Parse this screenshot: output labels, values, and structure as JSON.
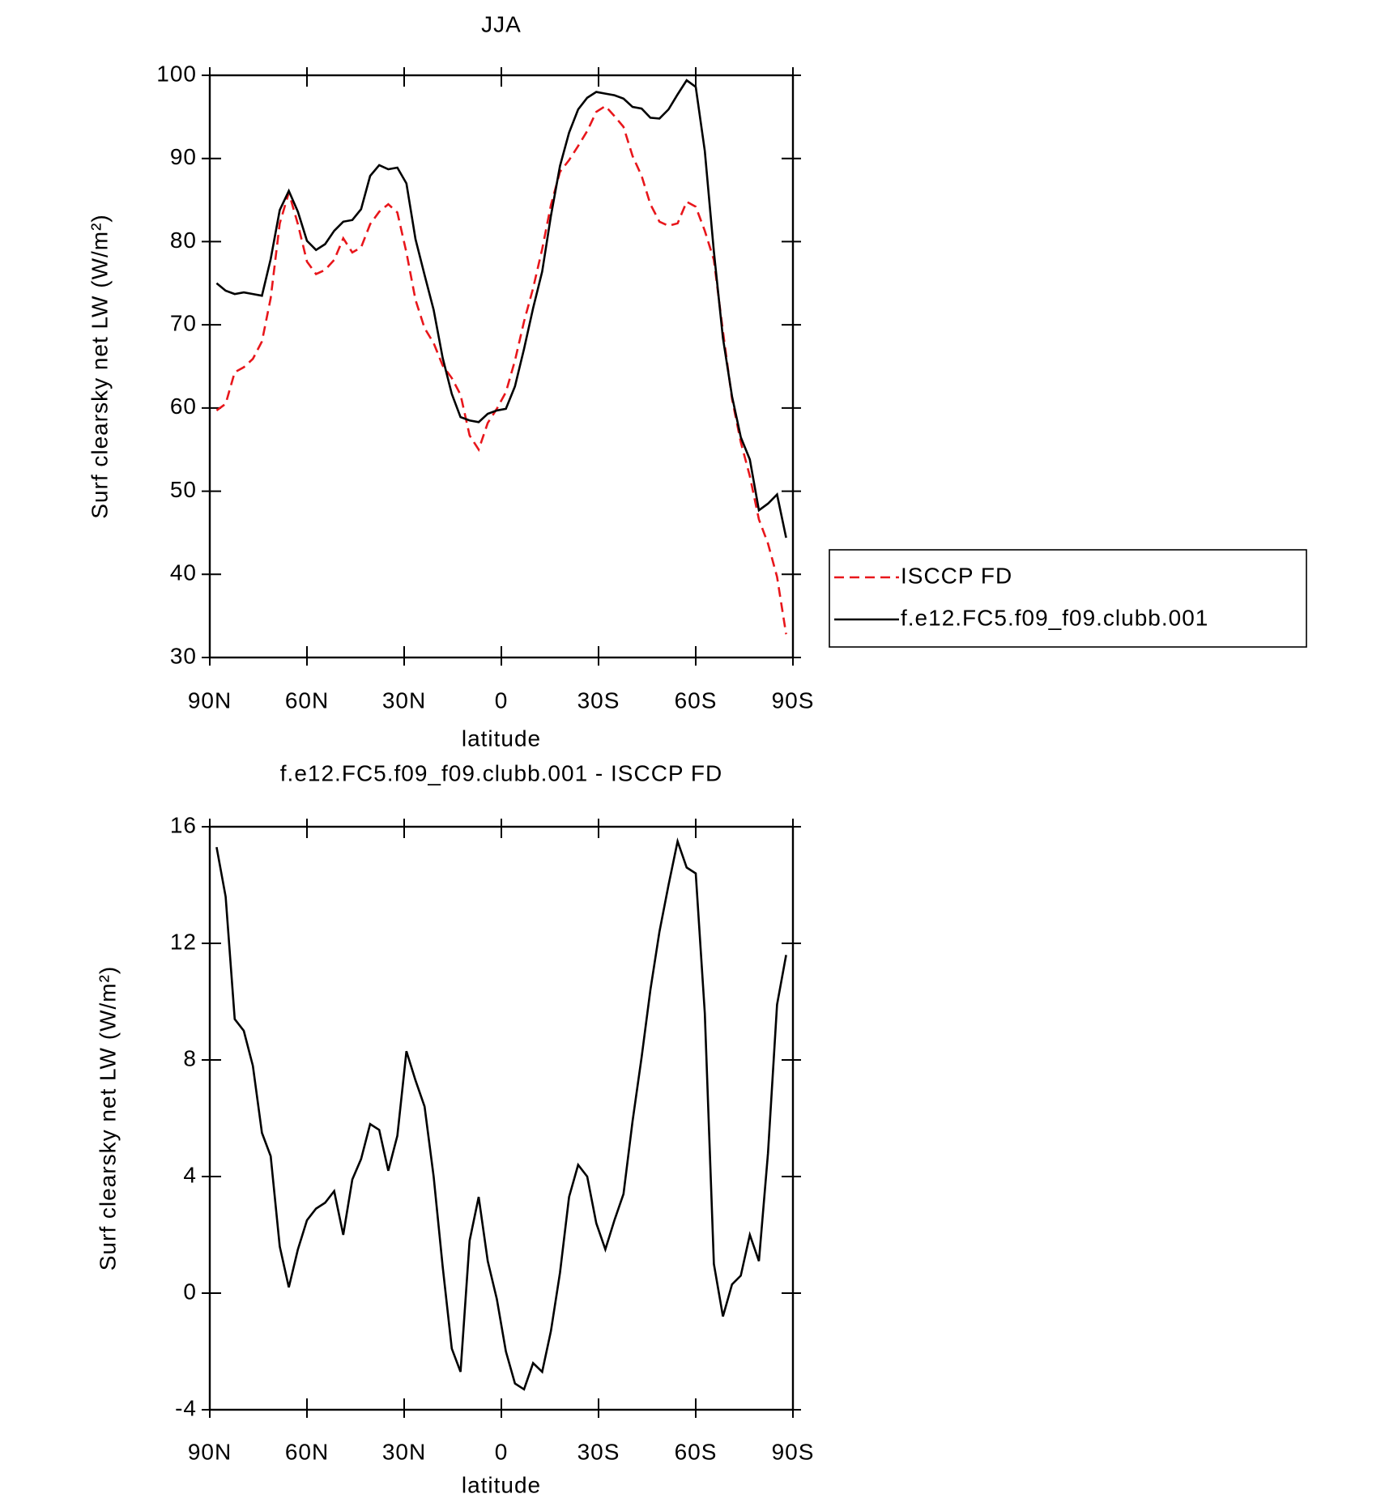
{
  "chart_data": [
    {
      "type": "line",
      "title": "JJA",
      "xlabel": "latitude",
      "ylabel": "Surf clearsky net LW (W/m²)",
      "x": [
        87.9,
        85.1,
        82.3,
        79.5,
        76.7,
        73.9,
        71.2,
        68.4,
        65.6,
        62.8,
        60.0,
        57.2,
        54.4,
        51.6,
        48.8,
        46.0,
        43.3,
        40.5,
        37.7,
        34.9,
        32.1,
        29.3,
        26.5,
        23.7,
        20.9,
        18.1,
        15.3,
        12.6,
        9.8,
        7.0,
        4.2,
        1.4,
        -1.4,
        -4.2,
        -7.0,
        -9.8,
        -12.6,
        -15.3,
        -18.1,
        -20.9,
        -23.7,
        -26.5,
        -29.3,
        -32.1,
        -34.9,
        -37.7,
        -40.5,
        -43.3,
        -46.0,
        -48.8,
        -51.6,
        -54.4,
        -57.2,
        -60.0,
        -62.8,
        -65.6,
        -68.4,
        -71.2,
        -73.9,
        -76.7,
        -79.5,
        -82.3,
        -85.1,
        -87.9
      ],
      "series": [
        {
          "name": "ISCCP FD",
          "color": "#e8161b",
          "style": "dashed",
          "values": [
            59.7,
            60.5,
            64.3,
            64.9,
            65.9,
            68.0,
            73.2,
            82.2,
            85.9,
            82.1,
            77.6,
            76.1,
            76.6,
            77.8,
            80.4,
            78.7,
            79.3,
            82.1,
            83.6,
            84.5,
            83.5,
            78.7,
            73.0,
            69.6,
            67.8,
            65.1,
            63.6,
            61.6,
            56.7,
            55.0,
            58.2,
            59.9,
            61.9,
            65.7,
            70.4,
            74.4,
            79.1,
            84.4,
            88.4,
            89.8,
            91.5,
            93.3,
            95.6,
            96.3,
            95.1,
            93.8,
            90.3,
            87.9,
            84.5,
            82.4,
            81.9,
            82.2,
            84.8,
            84.2,
            81.3,
            77.8,
            69.2,
            61.1,
            55.9,
            51.8,
            46.6,
            43.7,
            39.7,
            32.8
          ]
        },
        {
          "name": "f.e12.FC5.f09_f09.clubb.001",
          "color": "#000000",
          "style": "solid",
          "values": [
            75.0,
            74.1,
            73.7,
            73.9,
            73.7,
            73.5,
            77.9,
            83.8,
            86.1,
            83.6,
            80.1,
            79.0,
            79.7,
            81.3,
            82.4,
            82.6,
            83.9,
            87.9,
            89.2,
            88.7,
            88.9,
            87.0,
            80.3,
            76.0,
            71.8,
            66.0,
            61.7,
            58.9,
            58.5,
            58.3,
            59.3,
            59.7,
            59.9,
            62.6,
            67.1,
            72.0,
            76.4,
            83.1,
            89.1,
            93.1,
            95.9,
            97.3,
            98.0,
            97.8,
            97.6,
            97.2,
            96.2,
            96.0,
            94.9,
            94.8,
            95.9,
            97.7,
            99.4,
            98.6,
            90.9,
            78.8,
            68.4,
            61.4,
            56.5,
            53.8,
            47.7,
            48.5,
            49.6,
            44.4
          ]
        }
      ],
      "xlim": [
        90,
        -90
      ],
      "xticks": [
        {
          "value": 90,
          "label": "90N"
        },
        {
          "value": 60,
          "label": "60N"
        },
        {
          "value": 30,
          "label": "30N"
        },
        0,
        {
          "value": -30,
          "label": "30S"
        },
        {
          "value": -60,
          "label": "60S"
        },
        {
          "value": -90,
          "label": "90S"
        }
      ],
      "ylim": [
        30,
        100
      ],
      "yticks": [
        30,
        40,
        50,
        60,
        70,
        80,
        90,
        100
      ],
      "legend": "right"
    },
    {
      "type": "line",
      "title": "f.e12.FC5.f09_f09.clubb.001 - ISCCP FD",
      "xlabel": "latitude",
      "ylabel": "Surf clearsky net LW (W/m²)",
      "x": [
        87.9,
        85.1,
        82.3,
        79.5,
        76.7,
        73.9,
        71.2,
        68.4,
        65.6,
        62.8,
        60.0,
        57.2,
        54.4,
        51.6,
        48.8,
        46.0,
        43.3,
        40.5,
        37.7,
        34.9,
        32.1,
        29.3,
        26.5,
        23.7,
        20.9,
        18.1,
        15.3,
        12.6,
        9.8,
        7.0,
        4.2,
        1.4,
        -1.4,
        -4.2,
        -7.0,
        -9.8,
        -12.6,
        -15.3,
        -18.1,
        -20.9,
        -23.7,
        -26.5,
        -29.3,
        -32.1,
        -34.9,
        -37.7,
        -40.5,
        -43.3,
        -46.0,
        -48.8,
        -51.6,
        -54.4,
        -57.2,
        -60.0,
        -62.8,
        -65.6,
        -68.4,
        -71.2,
        -73.9,
        -76.7,
        -79.5,
        -82.3,
        -85.1,
        -87.9
      ],
      "series": [
        {
          "color": "#000000",
          "style": "solid",
          "values": [
            15.3,
            13.6,
            9.4,
            9.0,
            7.8,
            5.5,
            4.7,
            1.6,
            0.2,
            1.5,
            2.5,
            2.9,
            3.1,
            3.5,
            2.0,
            3.9,
            4.6,
            5.8,
            5.6,
            4.2,
            5.4,
            8.3,
            7.3,
            6.4,
            4.0,
            0.9,
            -1.9,
            -2.7,
            1.8,
            3.3,
            1.1,
            -0.2,
            -2.0,
            -3.1,
            -3.3,
            -2.4,
            -2.7,
            -1.3,
            0.7,
            3.3,
            4.4,
            4.0,
            2.4,
            1.5,
            2.5,
            3.4,
            5.9,
            8.1,
            10.4,
            12.4,
            14.0,
            15.5,
            14.6,
            14.4,
            9.6,
            1.0,
            -0.8,
            0.3,
            0.6,
            2.0,
            1.1,
            4.8,
            9.9,
            11.6
          ]
        }
      ],
      "xlim": [
        90,
        -90
      ],
      "xticks": [
        {
          "value": 90,
          "label": "90N"
        },
        {
          "value": 60,
          "label": "60N"
        },
        {
          "value": 30,
          "label": "30N"
        },
        0,
        {
          "value": -30,
          "label": "30S"
        },
        {
          "value": -60,
          "label": "60S"
        },
        {
          "value": -90,
          "label": "90S"
        }
      ],
      "ylim": [
        -4,
        16
      ],
      "yticks": [
        -4,
        0,
        4,
        8,
        12,
        16
      ]
    }
  ]
}
